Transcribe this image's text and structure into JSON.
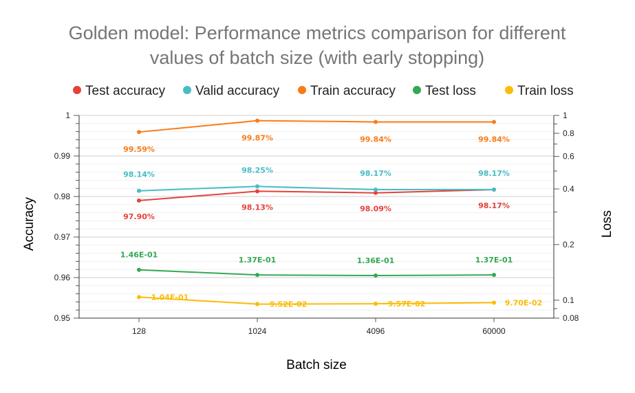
{
  "chart_data": {
    "type": "line",
    "title_lines": [
      "Golden model: Performance metrics comparison for different",
      "values of batch size (with early stopping)"
    ],
    "xlabel": "Batch size",
    "ylabel_left": "Accuracy",
    "ylabel_right": "Loss",
    "categories": [
      "128",
      "1024",
      "4096",
      "60000"
    ],
    "y_left": {
      "range": [
        0.95,
        1.0
      ],
      "ticks": [
        "0.95",
        "0.96",
        "0.97",
        "0.98",
        "0.99",
        "1"
      ],
      "tick_values": [
        0.95,
        0.96,
        0.97,
        0.98,
        0.99,
        1.0
      ]
    },
    "y_right": {
      "scale": "log",
      "range": [
        0.08,
        1.0
      ],
      "ticks": [
        "0.08",
        "0.1",
        "0.2",
        "0.4",
        "0.6",
        "0.8",
        "1"
      ],
      "tick_values": [
        0.08,
        0.1,
        0.2,
        0.4,
        0.6,
        0.8,
        1.0
      ]
    },
    "legend_position": "top",
    "grid": true,
    "series": [
      {
        "name": "Test accuracy",
        "color": "#e5413a",
        "axis": "left",
        "values": [
          0.979,
          0.9813,
          0.9809,
          0.9817
        ],
        "labels": [
          "97.90%",
          "98.13%",
          "98.09%",
          "98.17%"
        ]
      },
      {
        "name": "Valid accuracy",
        "color": "#46bdc6",
        "axis": "left",
        "values": [
          0.9814,
          0.9825,
          0.9817,
          0.9817
        ],
        "labels": [
          "98.14%",
          "98.25%",
          "98.17%",
          "98.17%"
        ]
      },
      {
        "name": "Train accuracy",
        "color": "#fa7b17",
        "axis": "left",
        "values": [
          0.9959,
          0.9987,
          0.9984,
          0.9984
        ],
        "labels": [
          "99.59%",
          "99.87%",
          "99.84%",
          "99.84%"
        ]
      },
      {
        "name": "Test loss",
        "color": "#34a853",
        "axis": "right",
        "values": [
          0.146,
          0.137,
          0.136,
          0.137
        ],
        "labels": [
          "1.46E-01",
          "1.37E-01",
          "1.36E-01",
          "1.37E-01"
        ]
      },
      {
        "name": "Train loss",
        "color": "#fbbc04",
        "axis": "right",
        "values": [
          0.104,
          0.0952,
          0.0957,
          0.097
        ],
        "labels": [
          "1.04E-01",
          "9.52E-02",
          "9.57E-02",
          "9.70E-02"
        ]
      }
    ]
  }
}
